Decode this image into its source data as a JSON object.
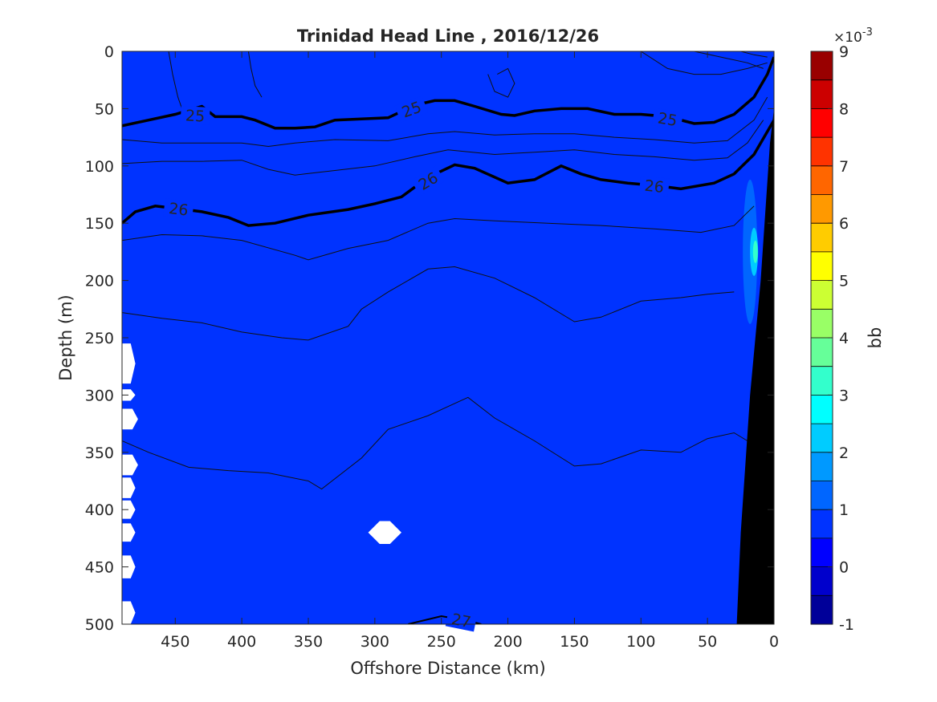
{
  "chart_data": {
    "type": "heatmap",
    "title": "Trinidad Head Line , 2016/12/26",
    "xlabel": "Offshore Distance (km)",
    "ylabel": "Depth (m)",
    "xlim": [
      490,
      0
    ],
    "ylim": [
      0,
      500
    ],
    "x_direction": "reversed",
    "y_direction": "reversed (depth increases downward)",
    "x_ticks": [
      450,
      400,
      350,
      300,
      250,
      200,
      150,
      100,
      50,
      0
    ],
    "y_ticks": [
      0,
      50,
      100,
      150,
      200,
      250,
      300,
      350,
      400,
      450,
      500
    ],
    "colorbar": {
      "label": "bb",
      "multiplier_label": "×10",
      "multiplier_exponent": "-3",
      "range": [
        -1,
        9
      ],
      "ticks": [
        -1,
        0,
        1,
        2,
        3,
        4,
        5,
        6,
        7,
        8,
        9
      ],
      "levels": 20,
      "colormap": "jet"
    },
    "field_description_values": {
      "background_bb": 0.5,
      "nearshore_max_bb": 3.0,
      "nearshore_max_location": {
        "x": 15,
        "depth": 175
      }
    },
    "isopycnals": [
      {
        "label": "25",
        "emphasized": true,
        "points": [
          [
            490,
            65
          ],
          [
            470,
            60
          ],
          [
            450,
            55
          ],
          [
            430,
            48
          ],
          [
            420,
            57
          ],
          [
            400,
            57
          ],
          [
            390,
            60
          ],
          [
            375,
            67
          ],
          [
            360,
            67
          ],
          [
            345,
            66
          ],
          [
            330,
            60
          ],
          [
            310,
            59
          ],
          [
            290,
            58
          ],
          [
            270,
            47
          ],
          [
            255,
            43
          ],
          [
            240,
            43
          ],
          [
            225,
            48
          ],
          [
            205,
            55
          ],
          [
            195,
            56
          ],
          [
            180,
            52
          ],
          [
            160,
            50
          ],
          [
            140,
            50
          ],
          [
            120,
            55
          ],
          [
            100,
            55
          ],
          [
            80,
            57
          ],
          [
            60,
            63
          ],
          [
            45,
            62
          ],
          [
            30,
            55
          ],
          [
            15,
            40
          ],
          [
            5,
            20
          ],
          [
            0,
            5
          ]
        ]
      },
      {
        "label": "26",
        "emphasized": true,
        "points": [
          [
            490,
            150
          ],
          [
            480,
            140
          ],
          [
            465,
            135
          ],
          [
            450,
            137
          ],
          [
            430,
            140
          ],
          [
            410,
            145
          ],
          [
            395,
            152
          ],
          [
            375,
            150
          ],
          [
            350,
            143
          ],
          [
            320,
            138
          ],
          [
            300,
            133
          ],
          [
            280,
            127
          ],
          [
            260,
            110
          ],
          [
            240,
            99
          ],
          [
            225,
            102
          ],
          [
            200,
            115
          ],
          [
            180,
            112
          ],
          [
            160,
            100
          ],
          [
            145,
            107
          ],
          [
            130,
            112
          ],
          [
            110,
            115
          ],
          [
            90,
            117
          ],
          [
            70,
            120
          ],
          [
            45,
            115
          ],
          [
            30,
            107
          ],
          [
            15,
            90
          ],
          [
            5,
            70
          ],
          [
            0,
            60
          ]
        ]
      },
      {
        "label": "27",
        "emphasized": false,
        "points": [
          [
            275,
            500
          ],
          [
            250,
            493
          ],
          [
            230,
            497
          ],
          [
            220,
            500
          ]
        ]
      }
    ],
    "thin_contours": [
      [
        [
          490,
          77
        ],
        [
          460,
          80
        ],
        [
          430,
          80
        ],
        [
          400,
          80
        ],
        [
          380,
          83
        ],
        [
          360,
          80
        ],
        [
          330,
          77
        ],
        [
          290,
          78
        ],
        [
          260,
          72
        ],
        [
          240,
          70
        ],
        [
          210,
          73
        ],
        [
          180,
          72
        ],
        [
          150,
          72
        ],
        [
          120,
          75
        ],
        [
          90,
          77
        ],
        [
          60,
          80
        ],
        [
          35,
          78
        ],
        [
          15,
          60
        ],
        [
          5,
          40
        ]
      ],
      [
        [
          490,
          98
        ],
        [
          460,
          96
        ],
        [
          430,
          96
        ],
        [
          400,
          95
        ],
        [
          380,
          103
        ],
        [
          360,
          108
        ],
        [
          330,
          104
        ],
        [
          300,
          100
        ],
        [
          270,
          92
        ],
        [
          245,
          86
        ],
        [
          210,
          90
        ],
        [
          180,
          88
        ],
        [
          150,
          86
        ],
        [
          120,
          90
        ],
        [
          90,
          92
        ],
        [
          60,
          95
        ],
        [
          35,
          93
        ],
        [
          20,
          80
        ],
        [
          8,
          60
        ]
      ],
      [
        [
          490,
          165
        ],
        [
          460,
          160
        ],
        [
          430,
          161
        ],
        [
          400,
          165
        ],
        [
          360,
          178
        ],
        [
          350,
          182
        ],
        [
          320,
          172
        ],
        [
          290,
          165
        ],
        [
          260,
          150
        ],
        [
          240,
          146
        ],
        [
          210,
          148
        ],
        [
          170,
          150
        ],
        [
          130,
          152
        ],
        [
          90,
          155
        ],
        [
          55,
          158
        ],
        [
          30,
          152
        ],
        [
          15,
          135
        ]
      ],
      [
        [
          490,
          228
        ],
        [
          460,
          233
        ],
        [
          430,
          237
        ],
        [
          400,
          245
        ],
        [
          370,
          250
        ],
        [
          350,
          252
        ],
        [
          320,
          240
        ],
        [
          310,
          225
        ],
        [
          290,
          210
        ],
        [
          260,
          190
        ],
        [
          240,
          188
        ],
        [
          210,
          198
        ],
        [
          180,
          215
        ],
        [
          150,
          236
        ],
        [
          130,
          232
        ],
        [
          100,
          218
        ],
        [
          70,
          215
        ],
        [
          50,
          212
        ],
        [
          30,
          210
        ]
      ],
      [
        [
          490,
          340
        ],
        [
          470,
          350
        ],
        [
          440,
          363
        ],
        [
          410,
          366
        ],
        [
          380,
          368
        ],
        [
          350,
          375
        ],
        [
          340,
          382
        ],
        [
          310,
          355
        ],
        [
          290,
          330
        ],
        [
          260,
          318
        ],
        [
          230,
          302
        ],
        [
          210,
          320
        ],
        [
          180,
          340
        ],
        [
          150,
          362
        ],
        [
          130,
          360
        ],
        [
          100,
          348
        ],
        [
          70,
          350
        ],
        [
          50,
          338
        ],
        [
          30,
          333
        ],
        [
          20,
          340
        ]
      ],
      [
        [
          455,
          0
        ],
        [
          452,
          20
        ],
        [
          448,
          40
        ],
        [
          445,
          50
        ]
      ],
      [
        [
          395,
          0
        ],
        [
          393,
          15
        ],
        [
          390,
          30
        ],
        [
          385,
          40
        ]
      ],
      [
        [
          215,
          20
        ],
        [
          210,
          35
        ],
        [
          200,
          40
        ],
        [
          195,
          28
        ],
        [
          200,
          15
        ],
        [
          208,
          20
        ]
      ],
      [
        [
          100,
          0
        ],
        [
          80,
          15
        ],
        [
          60,
          20
        ],
        [
          40,
          20
        ],
        [
          20,
          15
        ],
        [
          5,
          10
        ]
      ],
      [
        [
          60,
          0
        ],
        [
          40,
          5
        ],
        [
          20,
          10
        ],
        [
          8,
          15
        ]
      ],
      [
        [
          25,
          0
        ],
        [
          15,
          3
        ],
        [
          5,
          5
        ]
      ]
    ],
    "missing_data_regions": [
      {
        "x": [
          490,
          480
        ],
        "depth": [
          255,
          290
        ]
      },
      {
        "x": [
          490,
          480
        ],
        "depth": [
          295,
          305
        ]
      },
      {
        "x": [
          490,
          478
        ],
        "depth": [
          312,
          330
        ]
      },
      {
        "x": [
          490,
          478
        ],
        "depth": [
          352,
          370
        ]
      },
      {
        "x": [
          490,
          480
        ],
        "depth": [
          372,
          390
        ]
      },
      {
        "x": [
          490,
          480
        ],
        "depth": [
          392,
          408
        ]
      },
      {
        "x": [
          490,
          480
        ],
        "depth": [
          412,
          428
        ]
      },
      {
        "x": [
          490,
          480
        ],
        "depth": [
          440,
          460
        ]
      },
      {
        "x": [
          490,
          480
        ],
        "depth": [
          480,
          500
        ]
      },
      {
        "x": [
          305,
          280
        ],
        "depth": [
          410,
          430
        ]
      }
    ],
    "bathymetry": [
      [
        28,
        500
      ],
      [
        0,
        500
      ],
      [
        0,
        50
      ],
      [
        3,
        80
      ],
      [
        10,
        200
      ],
      [
        18,
        300
      ],
      [
        25,
        420
      ]
    ]
  }
}
